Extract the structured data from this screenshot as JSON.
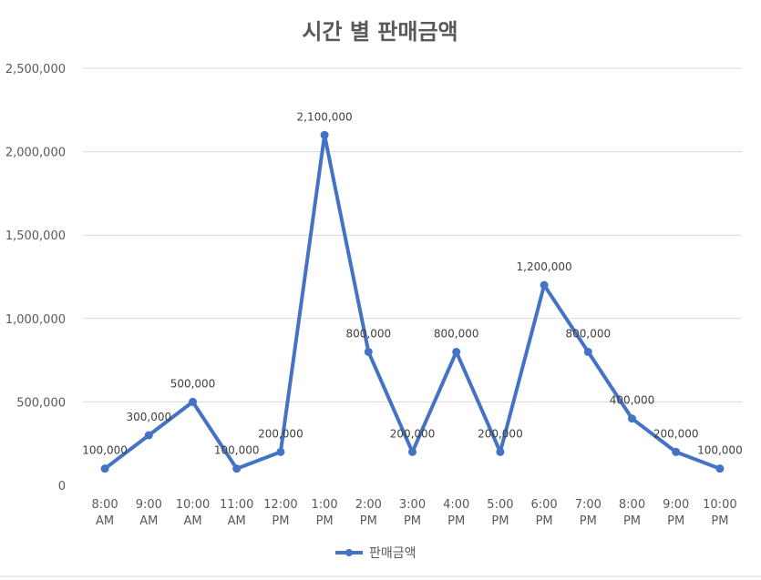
{
  "chart_data": {
    "type": "line",
    "title": "시간 별 판매금액",
    "xlabel": "",
    "ylabel": "",
    "categories": [
      [
        "8:00",
        "AM"
      ],
      [
        "9:00",
        "AM"
      ],
      [
        "10:00",
        "AM"
      ],
      [
        "11:00",
        "AM"
      ],
      [
        "12:00",
        "PM"
      ],
      [
        "1:00",
        "PM"
      ],
      [
        "2:00",
        "PM"
      ],
      [
        "3:00",
        "PM"
      ],
      [
        "4:00",
        "PM"
      ],
      [
        "5:00",
        "PM"
      ],
      [
        "6:00",
        "PM"
      ],
      [
        "7:00",
        "PM"
      ],
      [
        "8:00",
        "PM"
      ],
      [
        "9:00",
        "PM"
      ],
      [
        "10:00",
        "PM"
      ]
    ],
    "series": [
      {
        "name": "판매금액",
        "values": [
          100000,
          300000,
          500000,
          100000,
          200000,
          2100000,
          800000,
          200000,
          800000,
          200000,
          1200000,
          800000,
          400000,
          200000,
          100000
        ],
        "color": "#4472c4"
      }
    ],
    "ylim": [
      0,
      2500000
    ],
    "yticks": [
      0,
      500000,
      1000000,
      1500000,
      2000000,
      2500000
    ],
    "ytick_labels": [
      "0",
      "500,000",
      "1,000,000",
      "1,500,000",
      "2,000,000",
      "2,500,000"
    ],
    "data_labels": [
      "100,000",
      "300,000",
      "500,000",
      "100,000",
      "200,000",
      "2,100,000",
      "800,000",
      "200,000",
      "800,000",
      "200,000",
      "1,200,000",
      "800,000",
      "400,000",
      "200,000",
      "100,000"
    ],
    "grid": true,
    "legend_position": "bottom"
  }
}
